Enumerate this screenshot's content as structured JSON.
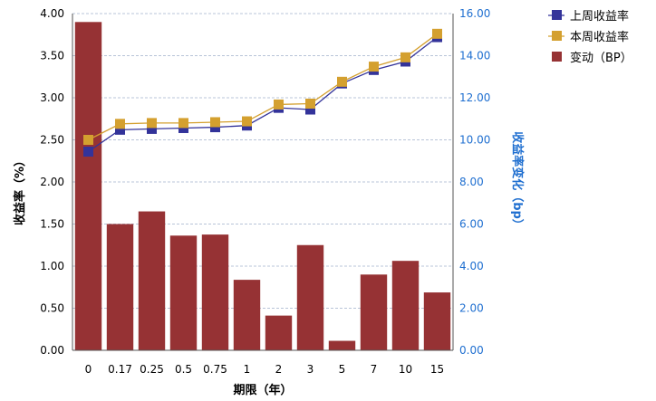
{
  "chart_data": {
    "type": "bar+line",
    "categories": [
      "0",
      "0.17",
      "0.25",
      "0.5",
      "0.75",
      "1",
      "2",
      "3",
      "5",
      "7",
      "10",
      "15"
    ],
    "series": [
      {
        "name": "上周收益率",
        "type": "line",
        "axis": "left",
        "color": "#33339a",
        "values": [
          2.36,
          2.62,
          2.63,
          2.64,
          2.65,
          2.67,
          2.88,
          2.86,
          3.17,
          3.33,
          3.43,
          3.72
        ]
      },
      {
        "name": "本周收益率",
        "type": "line",
        "axis": "left",
        "color": "#d4a02f",
        "values": [
          2.5,
          2.69,
          2.7,
          2.7,
          2.71,
          2.72,
          2.92,
          2.93,
          3.19,
          3.37,
          3.48,
          3.76
        ]
      },
      {
        "name": "变动（BP）",
        "type": "bar",
        "axis": "right",
        "color": "#963234",
        "values": [
          15.6,
          6.0,
          6.6,
          5.45,
          5.5,
          3.35,
          1.65,
          5.0,
          0.45,
          3.6,
          4.25,
          2.75
        ]
      }
    ],
    "left_axis": {
      "label": "收益率（%）",
      "range": [
        0,
        4
      ],
      "ticks": [
        "0.00",
        "0.50",
        "1.00",
        "1.50",
        "2.00",
        "2.50",
        "3.00",
        "3.50",
        "4.00"
      ]
    },
    "right_axis": {
      "label": "收益率变化（bp）",
      "range": [
        0,
        16
      ],
      "ticks": [
        "0.00",
        "2.00",
        "4.00",
        "6.00",
        "8.00",
        "10.00",
        "12.00",
        "14.00",
        "16.00"
      ],
      "color": "#1f6fd0"
    },
    "xlabel": "期限（年）",
    "grid": true,
    "legend_position": "top-right"
  }
}
